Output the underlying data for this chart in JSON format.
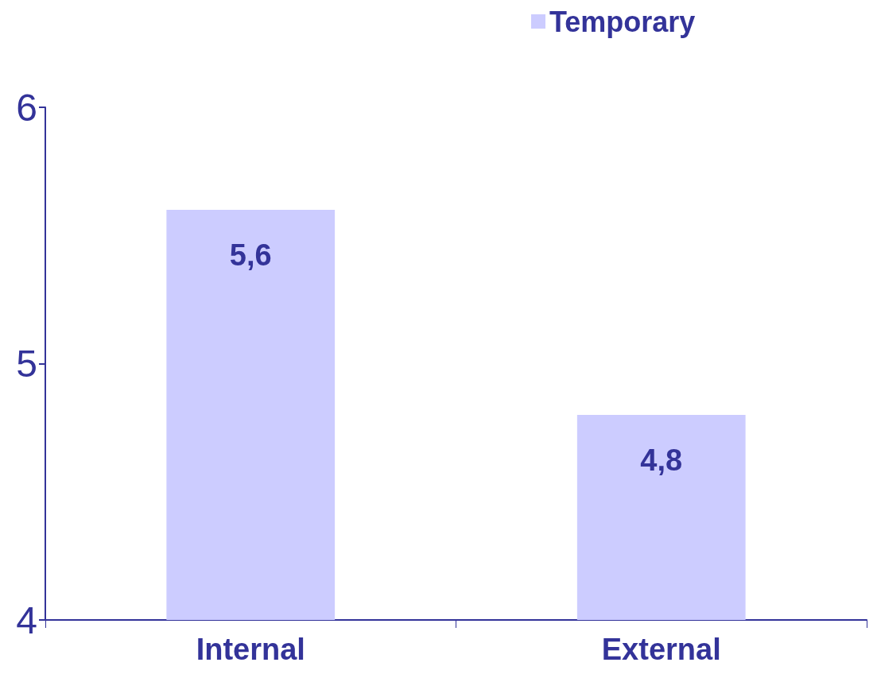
{
  "chart_data": {
    "type": "bar",
    "categories": [
      "Internal",
      "External"
    ],
    "series": [
      {
        "name": "Temporary",
        "color": "#ccccff",
        "values": [
          5.6,
          4.8
        ],
        "value_labels": [
          "5,6",
          "4,8"
        ]
      }
    ],
    "ylim": [
      4,
      6
    ],
    "yticks": [
      4,
      5,
      6
    ],
    "grid": false,
    "legend": "top right"
  }
}
